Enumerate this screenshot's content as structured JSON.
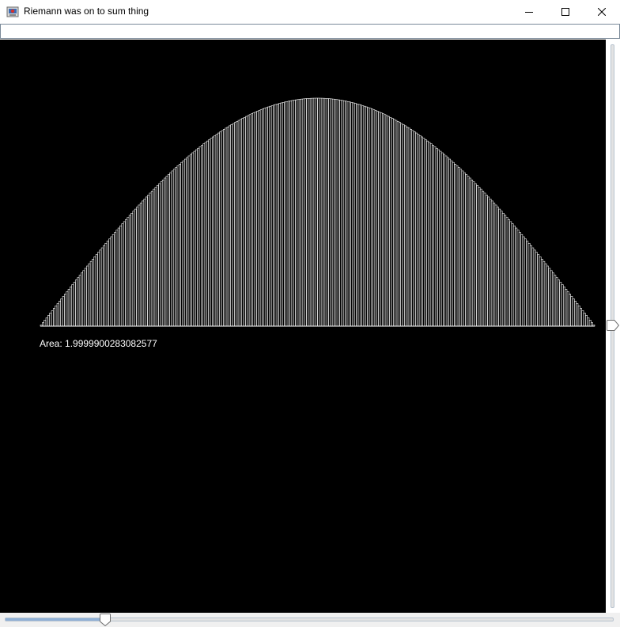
{
  "window": {
    "title": "Riemann was on to sum thing",
    "icon": "java-app-icon",
    "controls": {
      "minimize": "minimize-icon",
      "maximize": "maximize-icon",
      "close": "close-icon"
    }
  },
  "input": {
    "value": "",
    "placeholder": ""
  },
  "plot": {
    "background": "#000000",
    "bar_color": "#ffffff",
    "area_text": "Area: 1.9999900283082577"
  },
  "sliders": {
    "vertical": {
      "value": 0.5
    },
    "horizontal": {
      "value": 0.165
    }
  },
  "chart_data": {
    "type": "bar",
    "function": "sin(x)",
    "xlim": [
      0,
      3.14159
    ],
    "ylim": [
      0,
      1
    ],
    "bar_count": 300,
    "area": 1.9999900283082577
  }
}
